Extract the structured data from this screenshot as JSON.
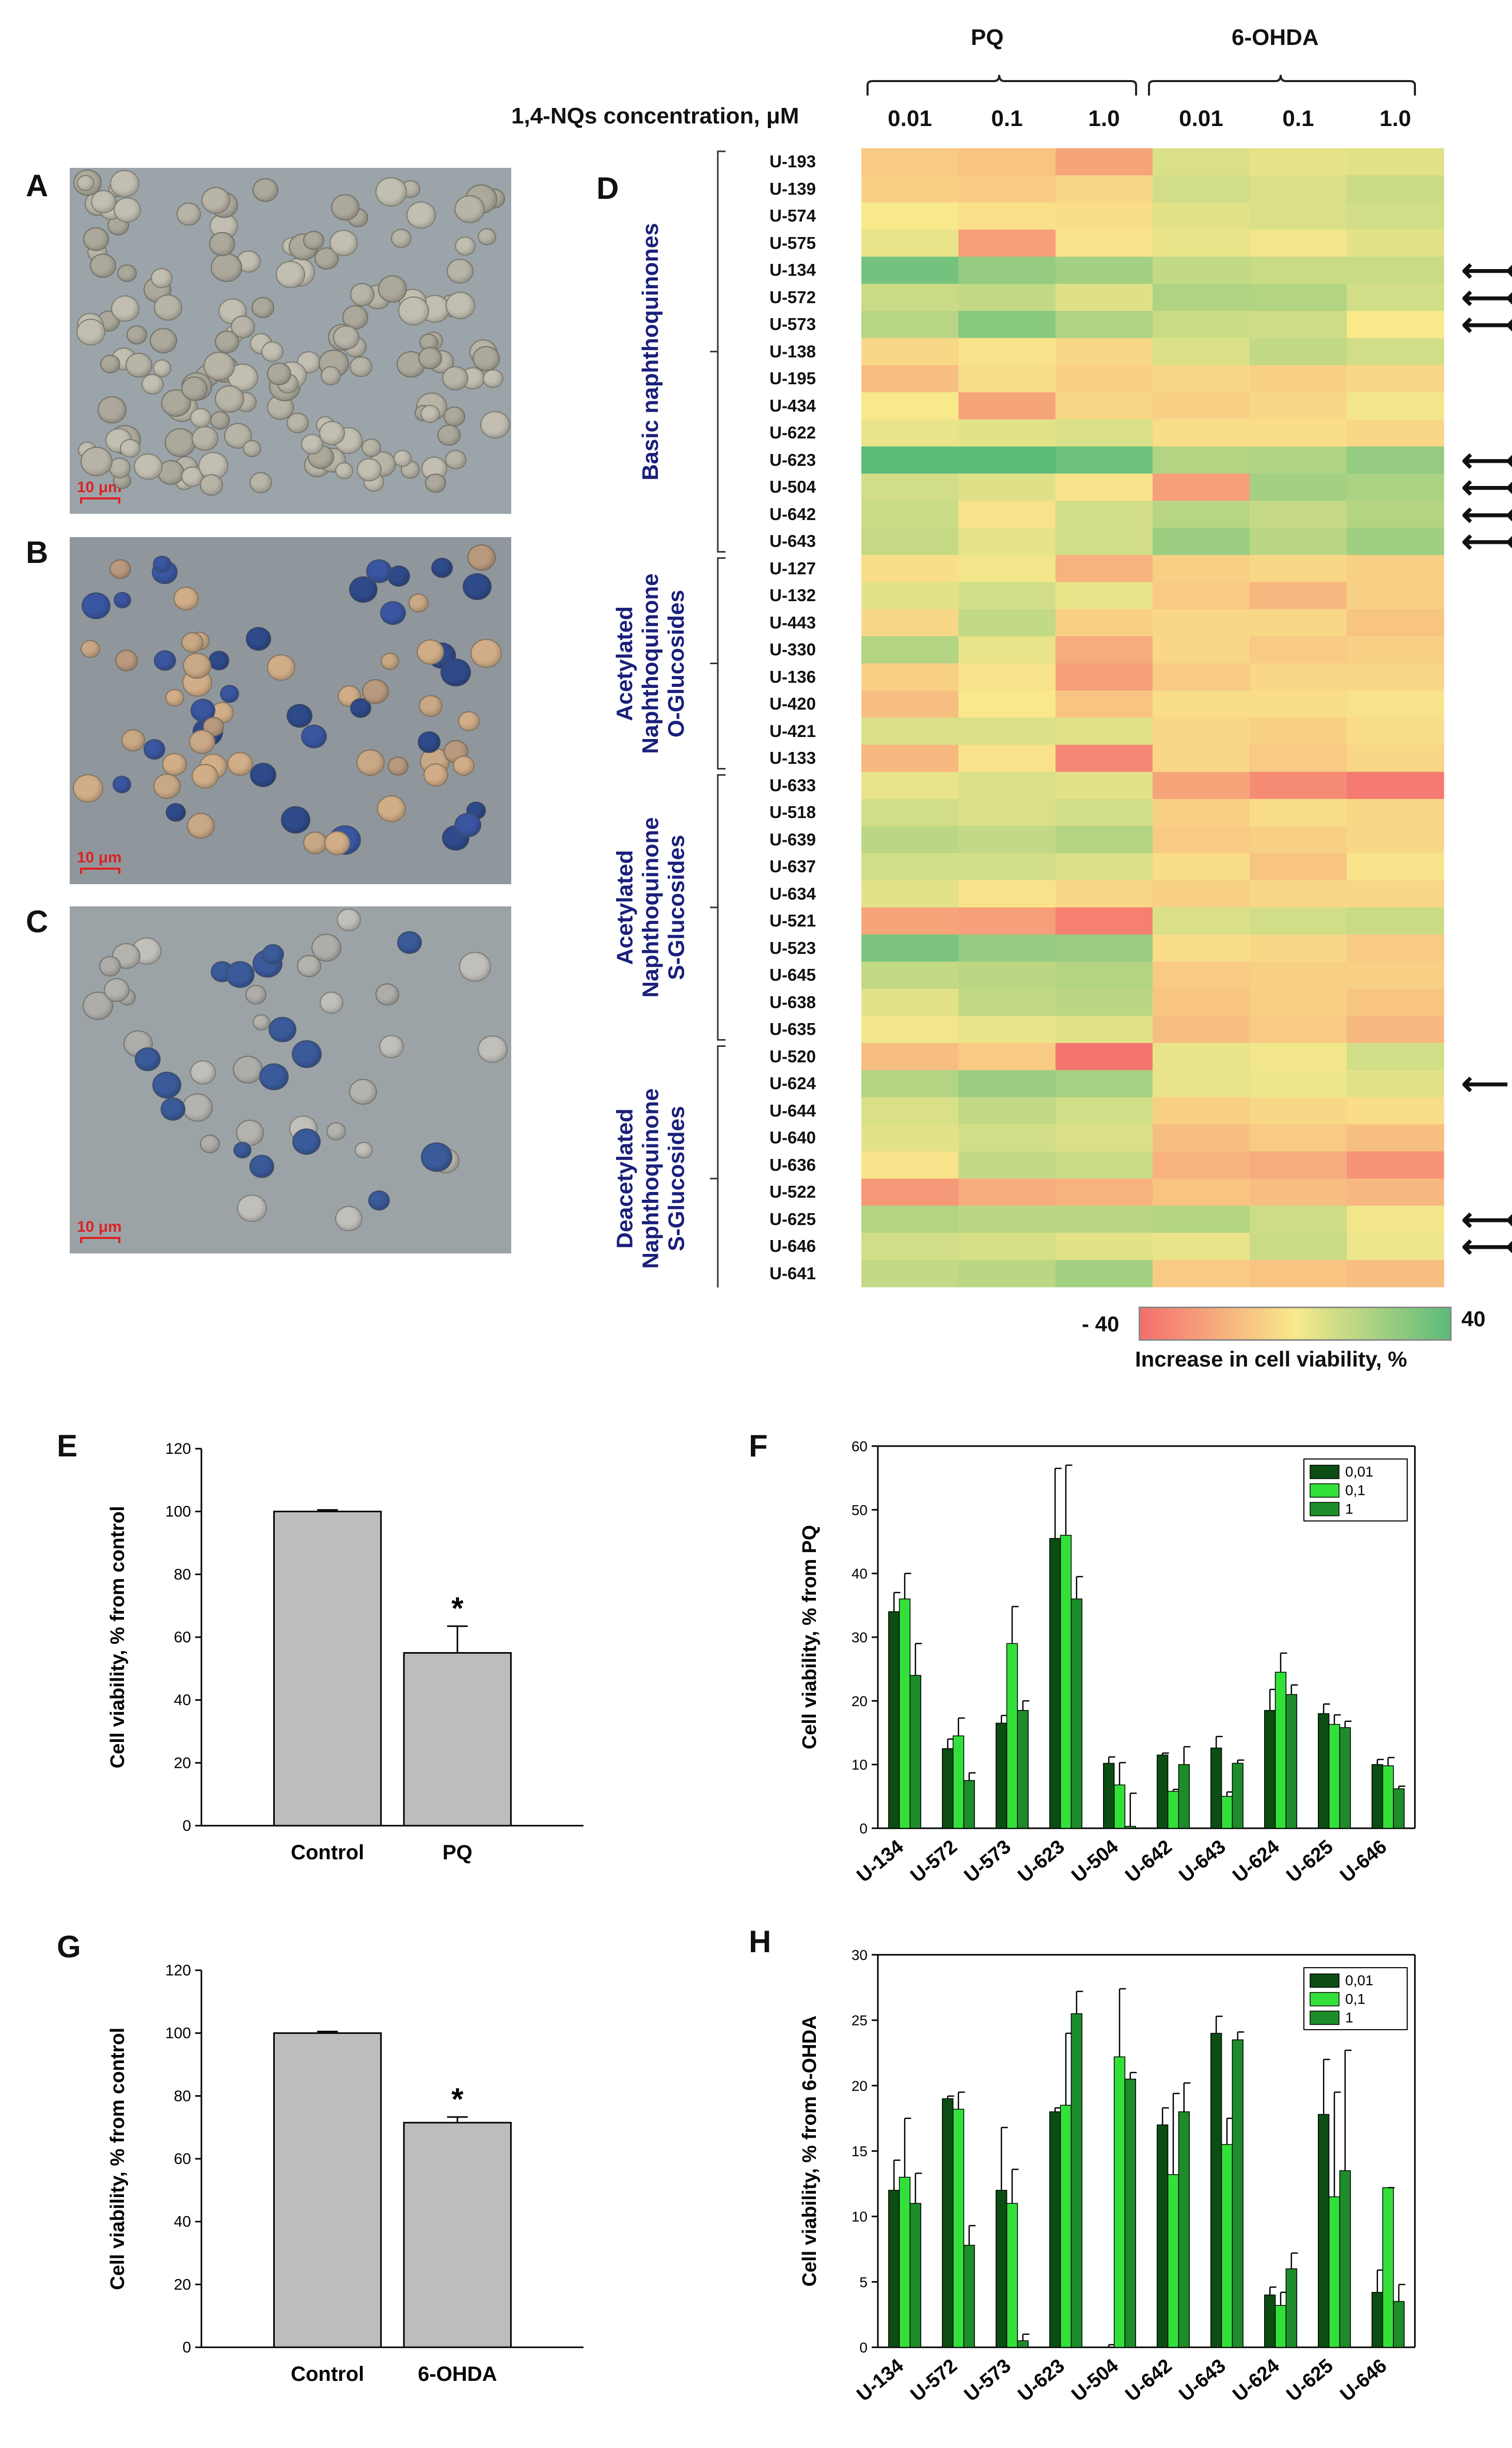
{
  "panel_letters": {
    "a": "A",
    "b": "B",
    "c": "C",
    "d": "D",
    "e": "E",
    "f": "F",
    "g": "G",
    "h": "H"
  },
  "scale_bar_label": "10 μm",
  "heatmap": {
    "group_headers": [
      "PQ",
      "6-OHDA"
    ],
    "concentration_label": "1,4-NQs concentration, μM",
    "concentrations": [
      "0.01",
      "0.1",
      "1.0",
      "0.01",
      "0.1",
      "1.0"
    ],
    "colorbar": {
      "min_label": "- 40",
      "max_label": "40",
      "title": "Increase in cell viability, %",
      "min_color": "#f46e6e",
      "mid_color": "#f9e98b",
      "max_color": "#5dbb7a"
    },
    "groups": [
      {
        "label": "Basic naphthoquinones",
        "start": 0,
        "end": 14
      },
      {
        "label": "Acetylated\nNaphthoquinone\nO-Glucosides",
        "start": 15,
        "end": 22
      },
      {
        "label": "Acetylated\nNaphthoquinone\nS-Glucosides",
        "start": 23,
        "end": 32
      },
      {
        "label": "Deacetylated\nNaphthoquinone\nS-Glucosides",
        "start": 33,
        "end": 42
      }
    ],
    "arrow_symbol": "⟵",
    "rows": [
      {
        "name": "U-193",
        "values": [
          -10,
          -12,
          -22,
          8,
          5,
          6
        ],
        "arrows": 0
      },
      {
        "name": "U-139",
        "values": [
          -8,
          -10,
          -6,
          10,
          8,
          12
        ],
        "arrows": 0
      },
      {
        "name": "U-574",
        "values": [
          0,
          -3,
          -4,
          6,
          8,
          10
        ],
        "arrows": 0
      },
      {
        "name": "U-575",
        "values": [
          4,
          -24,
          -2,
          4,
          2,
          6
        ],
        "arrows": 0
      },
      {
        "name": "U-134",
        "values": [
          34,
          26,
          22,
          14,
          12,
          12
        ],
        "arrows": 3
      },
      {
        "name": "U-572",
        "values": [
          12,
          14,
          7,
          19,
          18,
          10
        ],
        "arrows": 3
      },
      {
        "name": "U-573",
        "values": [
          17,
          29,
          19,
          12,
          11,
          0
        ],
        "arrows": 3
      },
      {
        "name": "U-138",
        "values": [
          -6,
          -2,
          -6,
          8,
          14,
          10
        ],
        "arrows": 0
      },
      {
        "name": "U-195",
        "values": [
          -14,
          -4,
          -8,
          -6,
          -8,
          -6
        ],
        "arrows": 0
      },
      {
        "name": "U-434",
        "values": [
          0,
          -22,
          -6,
          -8,
          -6,
          2
        ],
        "arrows": 0
      },
      {
        "name": "U-622",
        "values": [
          4,
          6,
          8,
          -4,
          -4,
          -6
        ],
        "arrows": 0
      },
      {
        "name": "U-623",
        "values": [
          40,
          40,
          36,
          18,
          19,
          26
        ],
        "arrows": 3
      },
      {
        "name": "U-504",
        "values": [
          10,
          7,
          -2,
          -24,
          22,
          20
        ],
        "arrows": 3
      },
      {
        "name": "U-642",
        "values": [
          12,
          -2,
          10,
          17,
          13,
          18
        ],
        "arrows": 3
      },
      {
        "name": "U-643",
        "values": [
          13,
          5,
          10,
          24,
          16,
          23
        ],
        "arrows": 3
      },
      {
        "name": "U-127",
        "values": [
          -4,
          2,
          -18,
          -8,
          -6,
          -8
        ],
        "arrows": 0
      },
      {
        "name": "U-132",
        "values": [
          6,
          10,
          4,
          -10,
          -16,
          -8
        ],
        "arrows": 0
      },
      {
        "name": "U-443",
        "values": [
          -6,
          14,
          -8,
          -6,
          -6,
          -12
        ],
        "arrows": 0
      },
      {
        "name": "U-330",
        "values": [
          18,
          4,
          -20,
          -6,
          -10,
          -8
        ],
        "arrows": 0
      },
      {
        "name": "U-136",
        "values": [
          -8,
          -2,
          -24,
          -10,
          -6,
          -6
        ],
        "arrows": 0
      },
      {
        "name": "U-420",
        "values": [
          -14,
          0,
          -12,
          -4,
          -4,
          -2
        ],
        "arrows": 0
      },
      {
        "name": "U-421",
        "values": [
          8,
          8,
          6,
          -6,
          -8,
          -4
        ],
        "arrows": 0
      },
      {
        "name": "U-133",
        "values": [
          -16,
          -2,
          -32,
          -6,
          -10,
          -6
        ],
        "arrows": 0
      },
      {
        "name": "U-633",
        "values": [
          4,
          8,
          6,
          -22,
          -30,
          -36
        ],
        "arrows": 0
      },
      {
        "name": "U-518",
        "values": [
          10,
          8,
          10,
          -8,
          -4,
          -6
        ],
        "arrows": 0
      },
      {
        "name": "U-639",
        "values": [
          16,
          14,
          18,
          -10,
          -8,
          -6
        ],
        "arrows": 0
      },
      {
        "name": "U-637",
        "values": [
          10,
          10,
          8,
          -4,
          -12,
          -2
        ],
        "arrows": 0
      },
      {
        "name": "U-634",
        "values": [
          6,
          -2,
          -6,
          -8,
          -6,
          -6
        ],
        "arrows": 0
      },
      {
        "name": "U-521",
        "values": [
          -22,
          -24,
          -34,
          8,
          10,
          12
        ],
        "arrows": 0
      },
      {
        "name": "U-523",
        "values": [
          32,
          26,
          24,
          -4,
          -6,
          -10
        ],
        "arrows": 0
      },
      {
        "name": "U-645",
        "values": [
          14,
          16,
          18,
          -10,
          -8,
          -8
        ],
        "arrows": 0
      },
      {
        "name": "U-638",
        "values": [
          6,
          14,
          16,
          -12,
          -8,
          -12
        ],
        "arrows": 0
      },
      {
        "name": "U-635",
        "values": [
          2,
          4,
          6,
          -14,
          -10,
          -16
        ],
        "arrows": 0
      },
      {
        "name": "U-520",
        "values": [
          -14,
          -10,
          -38,
          4,
          2,
          10
        ],
        "arrows": 0
      },
      {
        "name": "U-624",
        "values": [
          18,
          24,
          21,
          4,
          3,
          6
        ],
        "arrows": 1
      },
      {
        "name": "U-644",
        "values": [
          8,
          14,
          10,
          -8,
          -6,
          -4
        ],
        "arrows": 0
      },
      {
        "name": "U-640",
        "values": [
          6,
          10,
          8,
          -14,
          -10,
          -14
        ],
        "arrows": 0
      },
      {
        "name": "U-636",
        "values": [
          -2,
          14,
          12,
          -18,
          -20,
          -28
        ],
        "arrows": 0
      },
      {
        "name": "U-522",
        "values": [
          -26,
          -20,
          -18,
          -12,
          -14,
          -16
        ],
        "arrows": 0
      },
      {
        "name": "U-625",
        "values": [
          18,
          16,
          16,
          18,
          11,
          2
        ],
        "arrows": 2
      },
      {
        "name": "U-646",
        "values": [
          10,
          9,
          6,
          4,
          12,
          3
        ],
        "arrows": 2
      },
      {
        "name": "U-641",
        "values": [
          14,
          16,
          22,
          -10,
          -12,
          -14
        ],
        "arrows": 0
      }
    ]
  },
  "chart_data": [
    {
      "panel": "E",
      "type": "bar",
      "categories": [
        "Control",
        "PQ"
      ],
      "values": [
        100,
        55
      ],
      "errors": [
        0.5,
        8.5
      ],
      "significance": [
        "",
        "*"
      ],
      "ylabel": "Cell viability, % from control",
      "ylim": [
        0,
        120
      ],
      "yticks": [
        "0",
        "20",
        "40",
        "60",
        "80",
        "100",
        "120"
      ],
      "bar_color": "#bdbdbd"
    },
    {
      "panel": "F",
      "type": "bar",
      "categories": [
        "U-134",
        "U-572",
        "U-573",
        "U-623",
        "U-504",
        "U-642",
        "U-643",
        "U-624",
        "U-625",
        "U-646"
      ],
      "series": [
        {
          "name": "0,01",
          "color": "#0b4d12",
          "values": [
            34,
            12.5,
            16.5,
            45.5,
            10.2,
            11.5,
            12.6,
            18.5,
            18,
            10
          ],
          "errors": [
            3,
            1.5,
            1.2,
            11,
            1,
            0.3,
            1.8,
            3.3,
            1.5,
            0.8
          ]
        },
        {
          "name": "0,1",
          "color": "#33e03a",
          "values": [
            36,
            14.5,
            29,
            46,
            6.8,
            5.8,
            5,
            24.5,
            16.3,
            9.8
          ],
          "errors": [
            4,
            2.8,
            5.8,
            11,
            3.5,
            0.3,
            0.7,
            3,
            1.5,
            1.3
          ]
        },
        {
          "name": "1",
          "color": "#1e8c2a",
          "values": [
            24,
            7.5,
            18.5,
            36,
            0.3,
            10,
            10.2,
            21,
            15.8,
            6.2
          ],
          "errors": [
            5,
            1.2,
            1.5,
            3.5,
            5.2,
            2.8,
            0.5,
            1.5,
            1,
            0.4
          ]
        }
      ],
      "ylabel": "Cell viability, % from PQ",
      "ylim": [
        0,
        60
      ],
      "yticks": [
        "0",
        "10",
        "20",
        "30",
        "40",
        "50",
        "60"
      ]
    },
    {
      "panel": "G",
      "type": "bar",
      "categories": [
        "Control",
        "6-OHDA"
      ],
      "values": [
        100,
        71.5
      ],
      "errors": [
        0.5,
        1.8
      ],
      "significance": [
        "",
        "*"
      ],
      "ylabel": "Cell viability, % from control",
      "ylim": [
        0,
        120
      ],
      "yticks": [
        "0",
        "20",
        "40",
        "60",
        "80",
        "100",
        "120"
      ],
      "bar_color": "#bdbdbd"
    },
    {
      "panel": "H",
      "type": "bar",
      "categories": [
        "U-134",
        "U-572",
        "U-573",
        "U-623",
        "U-504",
        "U-642",
        "U-643",
        "U-624",
        "U-625",
        "U-646"
      ],
      "series": [
        {
          "name": "0,01",
          "color": "#0b4d12",
          "values": [
            12,
            19,
            12,
            18,
            0,
            17,
            24,
            4,
            17.8,
            4.2
          ],
          "errors": [
            2.3,
            0.2,
            4.8,
            0.3,
            0.2,
            1.3,
            1.3,
            0.6,
            4.2,
            1.7
          ]
        },
        {
          "name": "0,1",
          "color": "#33e03a",
          "values": [
            13,
            18.2,
            11,
            18.5,
            22.2,
            13.2,
            15.5,
            3.2,
            11.5,
            12.2
          ],
          "errors": [
            4.5,
            1.3,
            2.6,
            5.5,
            5.2,
            6.2,
            2,
            1,
            8,
            0
          ]
        },
        {
          "name": "1",
          "color": "#1e8c2a",
          "values": [
            11,
            7.8,
            0.5,
            25.5,
            20.5,
            18,
            23.5,
            6,
            13.5,
            3.5
          ],
          "errors": [
            2.3,
            1.5,
            0.5,
            1.7,
            0.5,
            2.2,
            0.6,
            1.2,
            9.2,
            1.3
          ]
        }
      ],
      "ylabel": "Cell viability, % from 6-OHDA",
      "ylim": [
        0,
        30
      ],
      "yticks": [
        "0",
        "5",
        "10",
        "15",
        "20",
        "25",
        "30"
      ]
    }
  ]
}
